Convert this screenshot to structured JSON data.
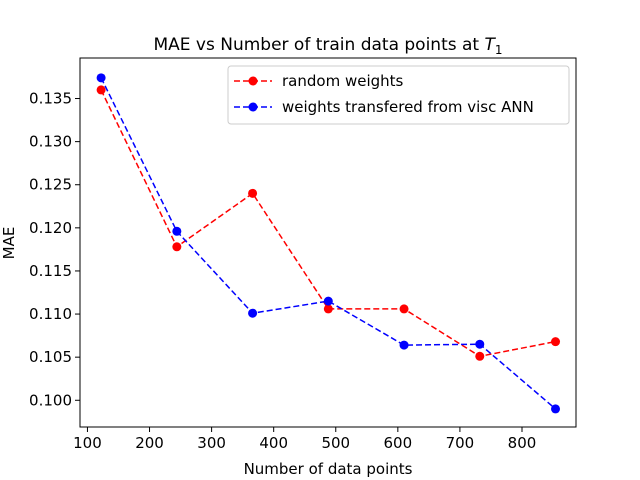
{
  "chart_data": {
    "type": "line",
    "title": "MAE vs Number of train data points at ",
    "title_math": "T",
    "title_math_sub": "1",
    "xlabel": "Number of data points",
    "ylabel": "MAE",
    "xlim": [
      88,
      887
    ],
    "ylim": [
      0.0969,
      0.1397
    ],
    "xticks": [
      100,
      200,
      300,
      400,
      500,
      600,
      700,
      800
    ],
    "xtick_labels": [
      "100",
      "200",
      "300",
      "400",
      "500",
      "600",
      "700",
      "800"
    ],
    "yticks": [
      0.1,
      0.105,
      0.11,
      0.115,
      0.12,
      0.125,
      0.13,
      0.135
    ],
    "ytick_labels": [
      "0.100",
      "0.105",
      "0.110",
      "0.115",
      "0.120",
      "0.125",
      "0.130",
      "0.135"
    ],
    "grid": false,
    "legend_position": "top-right",
    "series": [
      {
        "name": "random weights",
        "color": "#ff0000",
        "linestyle": "dashed",
        "marker": "circle",
        "x": [
          122,
          244,
          366,
          488,
          610,
          732,
          854
        ],
        "y": [
          0.136,
          0.1178,
          0.124,
          0.1106,
          0.1106,
          0.1051,
          0.1068
        ]
      },
      {
        "name": "weights transfered from visc ANN",
        "color": "#0000ff",
        "linestyle": "dashed",
        "marker": "circle",
        "x": [
          122,
          244,
          366,
          488,
          610,
          732,
          854
        ],
        "y": [
          0.1374,
          0.1196,
          0.1101,
          0.1115,
          0.1064,
          0.1065,
          0.099
        ]
      }
    ]
  }
}
